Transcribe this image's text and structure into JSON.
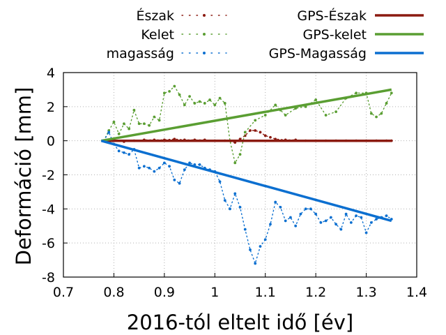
{
  "chart_data": {
    "type": "line",
    "xlabel": "2016-tól eltelt idő [év]",
    "ylabel": "Deformáció [mm]",
    "xlim": [
      0.7,
      1.4
    ],
    "ylim": [
      -8,
      4
    ],
    "xticks": [
      "0.7",
      "0.8",
      "0.9",
      "1",
      "1.1",
      "1.2",
      "1.3",
      "1.4"
    ],
    "yticks": [
      "4",
      "2",
      "0",
      "-2",
      "-4",
      "-6",
      "-8"
    ],
    "grid": true,
    "legend_position": "top",
    "series": [
      {
        "name": "Észak",
        "style": "dotted",
        "color": "#8b1a10",
        "x": [
          0.78,
          0.8,
          0.82,
          0.84,
          0.86,
          0.88,
          0.9,
          0.92,
          0.94,
          0.96,
          0.98,
          1.0,
          1.02,
          1.04,
          1.05,
          1.06,
          1.07,
          1.08,
          1.09,
          1.1,
          1.11,
          1.12,
          1.14,
          1.16,
          1.18,
          1.2,
          1.22,
          1.24,
          1.26,
          1.28,
          1.3,
          1.32,
          1.34,
          1.35
        ],
        "y": [
          0.0,
          0.0,
          -0.05,
          0.0,
          0.05,
          0.05,
          0.05,
          0.1,
          0.05,
          0.05,
          0.05,
          0.0,
          0.0,
          -0.1,
          0.1,
          0.3,
          0.6,
          0.6,
          0.5,
          0.3,
          0.2,
          0.1,
          0.05,
          0.05,
          0.0,
          0.0,
          0.0,
          0.0,
          0.0,
          0.0,
          0.0,
          0.0,
          0.0,
          0.0
        ]
      },
      {
        "name": "Kelet",
        "style": "dotted",
        "color": "#5a9e32",
        "x": [
          0.78,
          0.79,
          0.8,
          0.81,
          0.82,
          0.83,
          0.84,
          0.85,
          0.86,
          0.87,
          0.88,
          0.89,
          0.9,
          0.91,
          0.92,
          0.93,
          0.94,
          0.95,
          0.96,
          0.97,
          0.98,
          0.99,
          1.0,
          1.01,
          1.02,
          1.03,
          1.04,
          1.05,
          1.06,
          1.08,
          1.1,
          1.12,
          1.13,
          1.14,
          1.16,
          1.18,
          1.2,
          1.22,
          1.24,
          1.26,
          1.28,
          1.3,
          1.31,
          1.32,
          1.33,
          1.34,
          1.35
        ],
        "y": [
          0.0,
          0.6,
          1.1,
          0.4,
          1.0,
          0.7,
          1.8,
          1.0,
          1.0,
          0.9,
          1.4,
          1.2,
          2.8,
          2.9,
          3.2,
          2.7,
          2.1,
          2.6,
          2.2,
          2.3,
          2.2,
          2.4,
          2.1,
          2.5,
          2.2,
          0.0,
          -1.3,
          -0.8,
          0.5,
          1.2,
          1.5,
          2.1,
          1.8,
          1.5,
          1.9,
          2.0,
          2.4,
          1.5,
          1.7,
          2.5,
          2.8,
          2.8,
          1.6,
          1.4,
          1.6,
          2.2,
          2.8
        ]
      },
      {
        "name": "magasság",
        "style": "dotted",
        "color": "#0b6fd0",
        "x": [
          0.78,
          0.79,
          0.8,
          0.81,
          0.82,
          0.83,
          0.84,
          0.85,
          0.86,
          0.87,
          0.88,
          0.89,
          0.9,
          0.91,
          0.92,
          0.93,
          0.94,
          0.95,
          0.96,
          0.97,
          0.98,
          0.99,
          1.0,
          1.01,
          1.02,
          1.03,
          1.04,
          1.05,
          1.06,
          1.07,
          1.08,
          1.09,
          1.1,
          1.11,
          1.12,
          1.13,
          1.14,
          1.15,
          1.16,
          1.17,
          1.18,
          1.19,
          1.2,
          1.21,
          1.22,
          1.23,
          1.24,
          1.25,
          1.26,
          1.27,
          1.28,
          1.29,
          1.3,
          1.31,
          1.32,
          1.33,
          1.34,
          1.35
        ],
        "y": [
          0.0,
          0.5,
          -0.2,
          -0.6,
          -0.7,
          -0.8,
          -0.5,
          -1.6,
          -1.5,
          -1.6,
          -1.8,
          -1.6,
          -1.3,
          -1.5,
          -2.3,
          -2.5,
          -1.7,
          -1.3,
          -1.4,
          -1.4,
          -1.6,
          -1.7,
          -1.8,
          -2.4,
          -3.5,
          -4.0,
          -3.1,
          -3.9,
          -5.2,
          -6.4,
          -7.2,
          -6.2,
          -5.8,
          -4.9,
          -3.6,
          -3.9,
          -4.7,
          -4.5,
          -5.0,
          -4.3,
          -4.0,
          -4.0,
          -4.3,
          -4.8,
          -4.7,
          -4.5,
          -4.9,
          -5.2,
          -4.3,
          -4.8,
          -4.4,
          -4.5,
          -5.4,
          -4.8,
          -4.6,
          -4.5,
          -4.4,
          -4.6
        ]
      },
      {
        "name": "GPS-Észak",
        "style": "solid",
        "color": "#8b1a10",
        "x": [
          0.775,
          1.35
        ],
        "y": [
          0.0,
          0.0
        ]
      },
      {
        "name": "GPS-kelet",
        "style": "solid",
        "color": "#5a9e32",
        "x": [
          0.775,
          1.35
        ],
        "y": [
          0.0,
          3.0
        ]
      },
      {
        "name": "GPS-Magasság",
        "style": "solid",
        "color": "#0b6fd0",
        "x": [
          0.775,
          1.35
        ],
        "y": [
          0.0,
          -4.7
        ]
      }
    ]
  }
}
